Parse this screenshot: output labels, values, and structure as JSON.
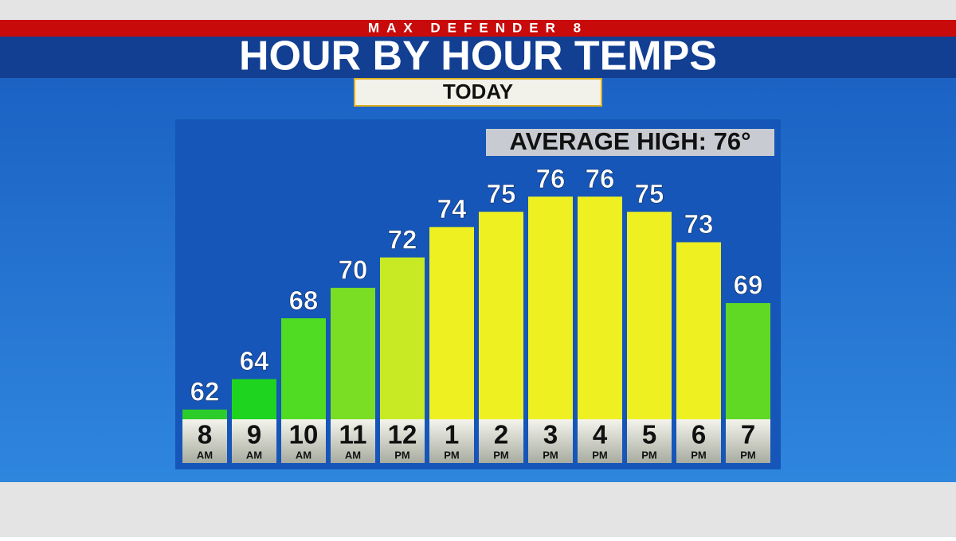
{
  "brand": "MAX DEFENDER 8",
  "chart_data": {
    "type": "bar",
    "title": "HOUR BY HOUR TEMPS",
    "subtitle": "TODAY",
    "annotation": "AVERAGE HIGH: 76°",
    "categories": [
      "8",
      "9",
      "10",
      "11",
      "12",
      "1",
      "2",
      "3",
      "4",
      "5",
      "6",
      "7"
    ],
    "periods": [
      "AM",
      "AM",
      "AM",
      "AM",
      "PM",
      "PM",
      "PM",
      "PM",
      "PM",
      "PM",
      "PM",
      "PM"
    ],
    "values": [
      62,
      64,
      68,
      70,
      72,
      74,
      75,
      76,
      76,
      75,
      73,
      69
    ],
    "colors": [
      "#2ccc2a",
      "#1fd41f",
      "#4fdc22",
      "#7ade24",
      "#c8ea24",
      "#eef022",
      "#eef022",
      "#eef022",
      "#eef022",
      "#eef022",
      "#eef022",
      "#5fd924"
    ],
    "ylim": [
      60,
      77
    ]
  }
}
